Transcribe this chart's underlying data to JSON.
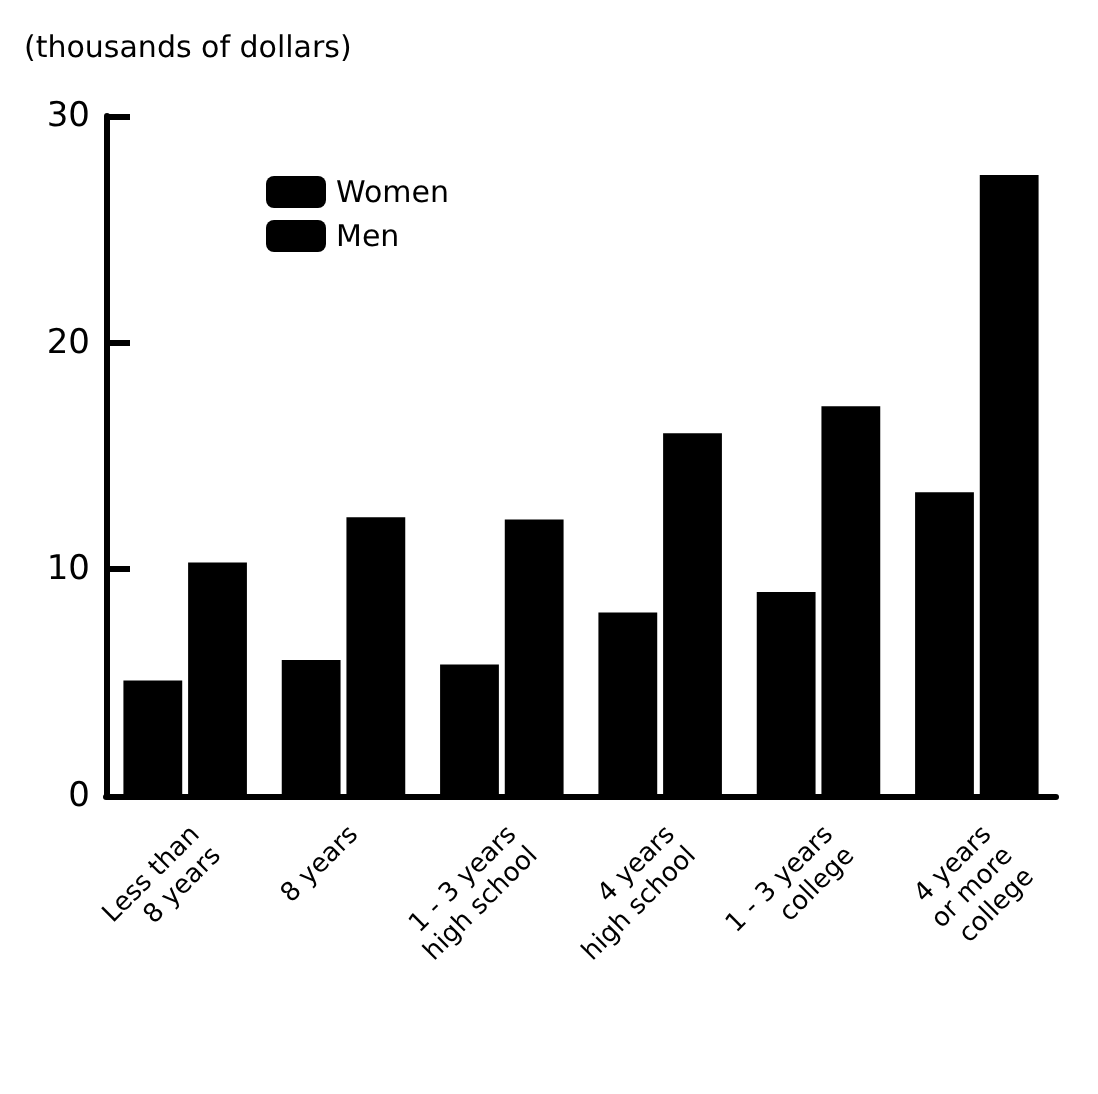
{
  "chart_data": {
    "type": "bar",
    "ylabel": "(thousands of dollars)",
    "categories": [
      "Less than\n8 years",
      "8 years",
      "1 - 3 years\nhigh school",
      "4 years\nhigh school",
      "1 - 3 years\ncollege",
      "4 years\nor more\ncollege"
    ],
    "series": [
      {
        "name": "Women",
        "color": "#000000",
        "values": [
          5.1,
          6.0,
          5.8,
          8.1,
          9.0,
          13.4
        ]
      },
      {
        "name": "Men",
        "color": "#000000",
        "values": [
          10.3,
          12.3,
          12.2,
          16.0,
          17.2,
          27.4
        ]
      }
    ],
    "ylim": [
      0,
      30
    ],
    "yticks": [
      0,
      10,
      20,
      30
    ],
    "grid": false,
    "legend": "top left"
  }
}
